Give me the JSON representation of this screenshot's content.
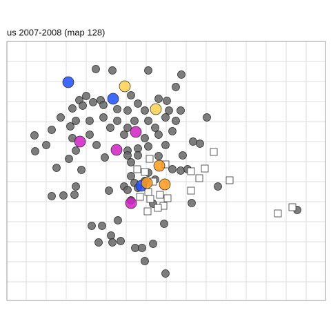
{
  "chart_data": {
    "type": "scatter",
    "title": "us 2007-2008  (map 128)",
    "xlim": [
      0,
      462
    ],
    "ylim": [
      0,
      375
    ],
    "xticks": [
      28,
      57,
      86,
      115,
      144,
      173,
      202,
      231,
      260,
      289,
      318,
      347,
      376,
      405,
      434
    ],
    "yticks": [
      27,
      56,
      85,
      114,
      143,
      172,
      201,
      230,
      259,
      288,
      317,
      346
    ],
    "grid": true,
    "series": [
      {
        "color": "#666666",
        "marker": "circle",
        "size": 5.5,
        "x": [
          129,
          153,
          205,
          253,
          245,
          115,
          105,
          136,
          180,
          220,
          232,
          95,
          110,
          125,
          140,
          160,
          175,
          190,
          200,
          235,
          252,
          78,
          100,
          120,
          140,
          160,
          185,
          205,
          230,
          245,
          290,
          65,
          92,
          150,
          175,
          215,
          240,
          40,
          95,
          120,
          170,
          200,
          220,
          57,
          41,
          100,
          130,
          175,
          190,
          205,
          230,
          270,
          280,
          90,
          142,
          175,
          190,
          220,
          255,
          72,
          108,
          180,
          240,
          252,
          262,
          180,
          205,
          215,
          170,
          185,
          200,
          100,
          148,
          175,
          190,
          306,
          65,
          82,
          98,
          180,
          212,
          268,
          161,
          123,
          138,
          228,
          151,
          165,
          133,
          153,
          212,
          186,
          196,
          200,
          230,
          421
        ],
        "values": [
          335,
          333,
          333,
          327,
          309,
          296,
          290,
          290,
          297,
          292,
          289,
          278,
          282,
          287,
          283,
          277,
          275,
          285,
          275,
          275,
          275,
          265,
          260,
          260,
          265,
          260,
          260,
          260,
          265,
          260,
          265,
          247,
          252,
          250,
          250,
          250,
          245,
          239,
          235,
          240,
          240,
          235,
          240,
          225,
          216,
          217,
          225,
          217,
          220,
          223,
          225,
          230,
          227,
          205,
          207,
          210,
          210,
          209,
          210,
          192,
          189,
          200,
          190,
          188,
          190,
          180,
          185,
          175,
          165,
          170,
          173,
          165,
          159,
          160,
          163,
          165,
          151,
          152,
          153,
          145,
          140,
          141,
          116,
          108,
          108,
          111,
          94,
          86,
          84,
          84,
          82,
          76,
          76,
          57,
          39,
          131
        ]
      },
      {
        "color": "#ffffff",
        "marker": "square",
        "size": 5,
        "x": [
          300,
          207,
          230,
          189,
          200,
          267,
          287,
          279,
          323,
          212,
          205,
          222,
          193,
          208,
          233,
          227,
          219,
          204,
          267,
          393,
          414
        ],
        "values": [
          215,
          205,
          197,
          190,
          186,
          187,
          191,
          177,
          174,
          172,
          157,
          153,
          150,
          147,
          148,
          137,
          134,
          129,
          159,
          126,
          135
        ]
      },
      {
        "color": "#1f4fff",
        "marker": "circle",
        "size": 8,
        "x": [
          89,
          154,
          195
        ],
        "values": [
          316,
          292,
          166
        ]
      },
      {
        "color": "#ffd24d",
        "marker": "circle",
        "size": 8,
        "x": [
          171,
          216
        ],
        "values": [
          310,
          277
        ]
      },
      {
        "color": "#ff9a1a",
        "marker": "circle",
        "size": 8,
        "x": [
          221,
          203,
          229
        ],
        "values": [
          195,
          170,
          168
        ]
      },
      {
        "color": "#d21fc4",
        "marker": "circle",
        "size": 8,
        "x": [
          187,
          106,
          159,
          180
        ],
        "values": [
          244,
          230,
          218,
          141
        ]
      }
    ]
  }
}
